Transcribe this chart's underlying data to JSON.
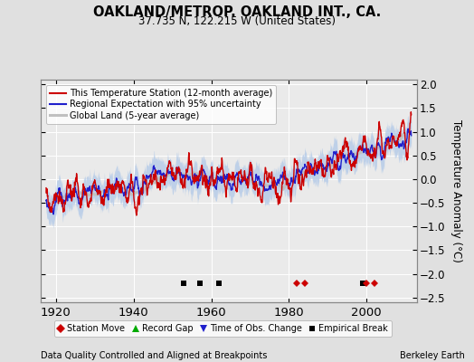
{
  "title": "OAKLAND/METROP. OAKLAND INT., CA.",
  "subtitle": "37.735 N, 122.215 W (United States)",
  "xlabel_note": "Data Quality Controlled and Aligned at Breakpoints",
  "xlabel_right": "Berkeley Earth",
  "ylabel": "Temperature Anomaly (°C)",
  "ylim": [
    -2.6,
    2.1
  ],
  "xlim": [
    1916,
    2013
  ],
  "yticks": [
    -2.5,
    -2,
    -1.5,
    -1,
    -0.5,
    0,
    0.5,
    1,
    1.5,
    2
  ],
  "xticks": [
    1920,
    1940,
    1960,
    1980,
    2000
  ],
  "bg_color": "#e0e0e0",
  "plot_bg_color": "#eaeaea",
  "grid_color": "#ffffff",
  "station_move_years": [
    1982,
    1984,
    2000,
    2002
  ],
  "empirical_break_years": [
    1953,
    1957,
    1962,
    1999
  ],
  "record_gap_years": [],
  "obs_change_years": [],
  "marker_y": -2.2
}
